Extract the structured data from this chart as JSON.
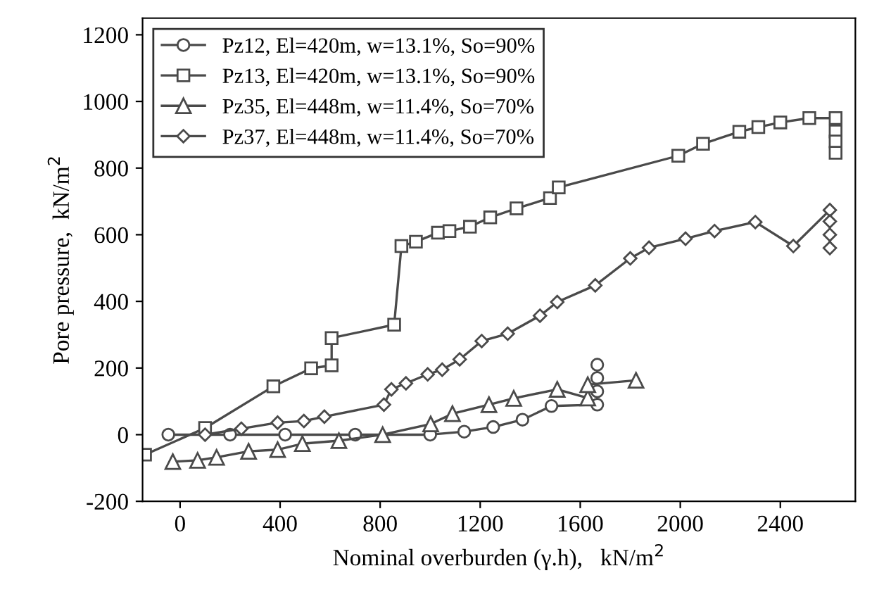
{
  "chart_data": {
    "type": "line",
    "xlabel": "Nominal overburden (γ.h),   kN/m$^{2}$",
    "ylabel": "Pore pressure,  kN/m$^{2}$",
    "xlim": [
      -150,
      2700
    ],
    "xticks": [
      0,
      400,
      800,
      1200,
      1600,
      2000,
      2400
    ],
    "ylim": [
      -200,
      1250
    ],
    "yticks": [
      -200,
      0,
      200,
      400,
      600,
      800,
      1000,
      1200
    ],
    "grid": false,
    "legend": "top left",
    "line_style": "solid",
    "series": [
      {
        "name": "Pz12, El=420m, w=13.1%, So=90%",
        "color": "#4a4a4a",
        "marker": "circle",
        "x": [
          -47,
          200,
          420,
          700,
          1000,
          1136,
          1252,
          1369,
          1485,
          1668,
          1668,
          1668,
          1668
        ],
        "values": [
          0,
          0,
          0,
          0,
          0,
          9,
          23,
          45,
          86,
          90,
          130,
          170,
          210
        ]
      },
      {
        "name": "Pz13, El=420m, w=13.1%, So=90%",
        "color": "#4a4a4a",
        "marker": "square",
        "x": [
          -140,
          100,
          373,
          524,
          606,
          606,
          856,
          885,
          943,
          1031,
          1077,
          1159,
          1240,
          1345,
          1479,
          1514,
          1992,
          2091,
          2236,
          2312,
          2400,
          2516,
          2621,
          2621,
          2621,
          2621
        ],
        "values": [
          -60,
          20,
          145,
          199,
          208,
          290,
          330,
          566,
          579,
          606,
          611,
          624,
          652,
          679,
          710,
          742,
          837,
          873,
          909,
          923,
          937,
          950,
          950,
          910,
          880,
          846
        ]
      },
      {
        "name": "Pz35, El=448m, w=11.4%, So=70%",
        "color": "#4a4a4a",
        "marker": "triangle",
        "x": [
          -29,
          70,
          146,
          274,
          390,
          489,
          635,
          810,
          1002,
          1089,
          1235,
          1334,
          1508,
          1630,
          1630,
          1823
        ],
        "values": [
          -81,
          -77,
          -68,
          -50,
          -45,
          -27,
          -18,
          0,
          32,
          63,
          90,
          109,
          136,
          110,
          150,
          163
        ]
      },
      {
        "name": "Pz37, El=448m, w=11.4%, So=70%",
        "color": "#4a4a4a",
        "marker": "diamond",
        "x": [
          100,
          245,
          390,
          495,
          577,
          815,
          845,
          903,
          990,
          1048,
          1118,
          1206,
          1310,
          1439,
          1508,
          1660,
          1800,
          1875,
          2021,
          2137,
          2300,
          2452,
          2598,
          2598,
          2598,
          2598
        ],
        "values": [
          0,
          18,
          36,
          41,
          54,
          90,
          136,
          154,
          181,
          195,
          226,
          281,
          303,
          357,
          398,
          448,
          529,
          561,
          588,
          611,
          638,
          566,
          674,
          640,
          600,
          560
        ]
      }
    ]
  }
}
